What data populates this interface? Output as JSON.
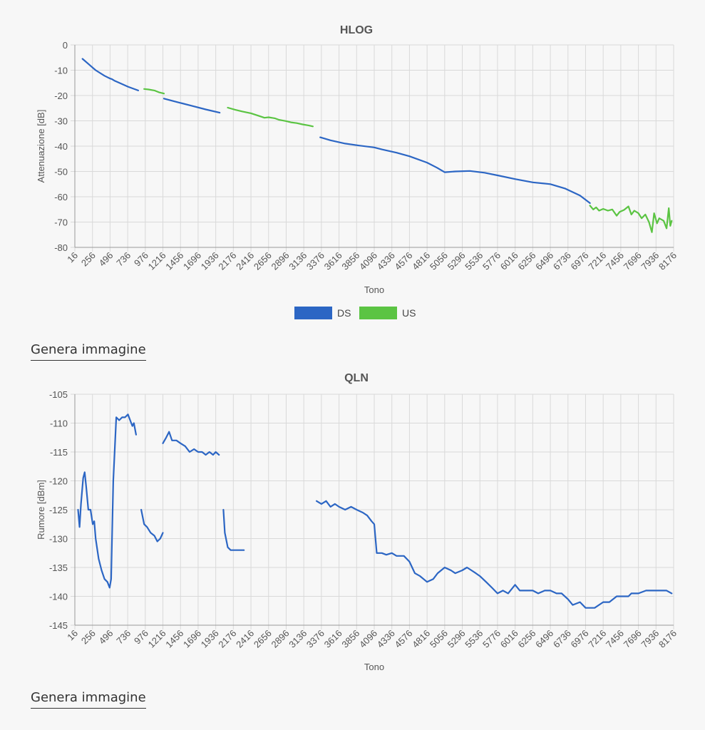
{
  "links": {
    "generate_1": "Genera immagine",
    "generate_2": "Genera immagine"
  },
  "colors": {
    "ds": "#2c66c4",
    "us": "#5bc443",
    "grid": "#d9d9d9",
    "axis": "#999999",
    "text": "#555555"
  },
  "chart_data": [
    {
      "type": "line",
      "title": "HLOG",
      "xlabel": "Tono",
      "ylabel": "Attenuazione [dB]",
      "xlim": [
        16,
        8176
      ],
      "ylim": [
        -80,
        0
      ],
      "yticks": [
        0,
        -10,
        -20,
        -30,
        -40,
        -50,
        -60,
        -70,
        -80
      ],
      "xticks": [
        16,
        256,
        496,
        736,
        976,
        1216,
        1456,
        1696,
        1936,
        2176,
        2416,
        2656,
        2896,
        3136,
        3376,
        3616,
        3856,
        4096,
        4336,
        4576,
        4816,
        5056,
        5296,
        5536,
        5776,
        6016,
        6256,
        6496,
        6736,
        6976,
        7216,
        7456,
        7696,
        7936,
        8176
      ],
      "grid": true,
      "legend": "bottom",
      "series": [
        {
          "name": "DS",
          "color": "#2c66c4",
          "segments": [
            [
              [
                120,
                -5.5
              ],
              [
                200,
                -7.5
              ],
              [
                300,
                -10
              ],
              [
                420,
                -12.2
              ],
              [
                490,
                -13.2
              ],
              [
                520,
                -13.5
              ],
              [
                560,
                -14.2
              ],
              [
                640,
                -15.2
              ],
              [
                740,
                -16.5
              ],
              [
                880,
                -18
              ]
            ],
            [
              [
                1230,
                -21.2
              ],
              [
                1400,
                -22.5
              ],
              [
                1600,
                -24
              ],
              [
                1800,
                -25.5
              ],
              [
                1990,
                -26.8
              ]
            ],
            [
              [
                3360,
                -36.5
              ],
              [
                3500,
                -37.7
              ],
              [
                3700,
                -39
              ],
              [
                3900,
                -39.8
              ],
              [
                4096,
                -40.5
              ],
              [
                4200,
                -41.3
              ],
              [
                4400,
                -42.6
              ],
              [
                4576,
                -44
              ],
              [
                4816,
                -46.5
              ],
              [
                4950,
                -48.5
              ],
              [
                5056,
                -50.3
              ],
              [
                5200,
                -50
              ],
              [
                5400,
                -49.8
              ],
              [
                5600,
                -50.5
              ],
              [
                5800,
                -51.7
              ],
              [
                6016,
                -53
              ],
              [
                6256,
                -54.3
              ],
              [
                6496,
                -55
              ],
              [
                6700,
                -56.8
              ],
              [
                6900,
                -59.5
              ],
              [
                7036,
                -62.5
              ]
            ]
          ]
        },
        {
          "name": "US",
          "color": "#5bc443",
          "segments": [
            [
              [
                960,
                -17.4
              ],
              [
                1020,
                -17.6
              ],
              [
                1100,
                -18
              ],
              [
                1160,
                -18.7
              ],
              [
                1230,
                -19.2
              ]
            ],
            [
              [
                2100,
                -24.8
              ],
              [
                2200,
                -25.6
              ],
              [
                2300,
                -26.3
              ],
              [
                2416,
                -27
              ],
              [
                2520,
                -28
              ],
              [
                2600,
                -28.8
              ],
              [
                2656,
                -28.6
              ],
              [
                2740,
                -29
              ],
              [
                2800,
                -29.6
              ],
              [
                2896,
                -30.1
              ],
              [
                2960,
                -30.6
              ],
              [
                3040,
                -30.9
              ],
              [
                3120,
                -31.4
              ],
              [
                3200,
                -31.8
              ],
              [
                3260,
                -32.2
              ]
            ],
            [
              [
                7036,
                -63.5
              ],
              [
                7080,
                -65
              ],
              [
                7120,
                -64.2
              ],
              [
                7160,
                -65.5
              ],
              [
                7216,
                -64.8
              ],
              [
                7280,
                -65.5
              ],
              [
                7340,
                -65
              ],
              [
                7400,
                -67.5
              ],
              [
                7440,
                -66
              ],
              [
                7500,
                -65.2
              ],
              [
                7560,
                -63.8
              ],
              [
                7600,
                -67
              ],
              [
                7640,
                -65.5
              ],
              [
                7696,
                -66.5
              ],
              [
                7740,
                -68.5
              ],
              [
                7790,
                -67
              ],
              [
                7840,
                -70
              ],
              [
                7880,
                -74
              ],
              [
                7910,
                -66.5
              ],
              [
                7950,
                -70.5
              ],
              [
                7980,
                -68.5
              ],
              [
                8040,
                -69.5
              ],
              [
                8080,
                -72.5
              ],
              [
                8110,
                -64.5
              ],
              [
                8130,
                -71.5
              ],
              [
                8150,
                -69.5
              ]
            ]
          ]
        }
      ]
    },
    {
      "type": "line",
      "title": "QLN",
      "xlabel": "Tono",
      "ylabel": "Rumore [dBm]",
      "xlim": [
        16,
        8176
      ],
      "ylim": [
        -145,
        -105
      ],
      "yticks": [
        -105,
        -110,
        -115,
        -120,
        -125,
        -130,
        -135,
        -140,
        -145
      ],
      "xticks": [
        16,
        256,
        496,
        736,
        976,
        1216,
        1456,
        1696,
        1936,
        2176,
        2416,
        2656,
        2896,
        3136,
        3376,
        3616,
        3856,
        4096,
        4336,
        4576,
        4816,
        5056,
        5296,
        5536,
        5776,
        6016,
        6256,
        6496,
        6736,
        6976,
        7216,
        7456,
        7696,
        7936,
        8176
      ],
      "grid": true,
      "legend": "none",
      "series": [
        {
          "name": "",
          "color": "#2c66c4",
          "segments": [
            [
              [
                60,
                -125
              ],
              [
                80,
                -128
              ],
              [
                100,
                -124
              ],
              [
                130,
                -119.5
              ],
              [
                150,
                -118.5
              ],
              [
                170,
                -121
              ],
              [
                200,
                -125
              ],
              [
                230,
                -125
              ],
              [
                260,
                -127.5
              ],
              [
                280,
                -127
              ],
              [
                300,
                -130
              ],
              [
                340,
                -133.5
              ],
              [
                380,
                -135.5
              ],
              [
                420,
                -137
              ],
              [
                460,
                -137.5
              ],
              [
                490,
                -138.5
              ],
              [
                510,
                -137
              ],
              [
                540,
                -120
              ],
              [
                580,
                -109
              ],
              [
                620,
                -109.5
              ],
              [
                660,
                -109
              ],
              [
                700,
                -109
              ],
              [
                740,
                -108.5
              ],
              [
                770,
                -109.5
              ],
              [
                800,
                -110.5
              ],
              [
                820,
                -110
              ],
              [
                850,
                -112
              ]
            ],
            [
              [
                920,
                -125
              ],
              [
                960,
                -127.5
              ],
              [
                1000,
                -128
              ],
              [
                1050,
                -129
              ],
              [
                1100,
                -129.5
              ],
              [
                1140,
                -130.5
              ],
              [
                1180,
                -130
              ],
              [
                1216,
                -129
              ]
            ],
            [
              [
                1216,
                -113.5
              ],
              [
                1260,
                -112.5
              ],
              [
                1300,
                -111.5
              ],
              [
                1340,
                -113
              ],
              [
                1400,
                -113
              ],
              [
                1456,
                -113.5
              ],
              [
                1520,
                -114
              ],
              [
                1580,
                -115
              ],
              [
                1640,
                -114.5
              ],
              [
                1696,
                -115
              ],
              [
                1750,
                -115
              ],
              [
                1800,
                -115.5
              ],
              [
                1850,
                -115
              ],
              [
                1900,
                -115.5
              ],
              [
                1936,
                -115
              ],
              [
                1980,
                -115.5
              ]
            ],
            [
              [
                2040,
                -125
              ],
              [
                2060,
                -129
              ],
              [
                2100,
                -131.5
              ],
              [
                2140,
                -132
              ],
              [
                2200,
                -132
              ],
              [
                2260,
                -132
              ],
              [
                2320,
                -132
              ]
            ],
            [
              [
                3310,
                -123.5
              ],
              [
                3376,
                -124
              ],
              [
                3440,
                -123.5
              ],
              [
                3500,
                -124.5
              ],
              [
                3560,
                -124
              ],
              [
                3616,
                -124.5
              ],
              [
                3700,
                -125
              ],
              [
                3780,
                -124.5
              ],
              [
                3856,
                -125
              ],
              [
                3940,
                -125.5
              ],
              [
                4000,
                -126
              ],
              [
                4060,
                -127
              ],
              [
                4096,
                -127.5
              ],
              [
                4130,
                -132.5
              ],
              [
                4200,
                -132.5
              ],
              [
                4260,
                -132.8
              ],
              [
                4336,
                -132.5
              ],
              [
                4400,
                -133
              ],
              [
                4500,
                -133
              ],
              [
                4576,
                -134
              ],
              [
                4650,
                -136
              ],
              [
                4720,
                -136.5
              ],
              [
                4816,
                -137.5
              ],
              [
                4900,
                -137
              ],
              [
                4960,
                -136
              ],
              [
                5056,
                -135
              ],
              [
                5140,
                -135.5
              ],
              [
                5200,
                -136
              ],
              [
                5296,
                -135.5
              ],
              [
                5360,
                -135
              ],
              [
                5420,
                -135.5
              ],
              [
                5480,
                -136
              ],
              [
                5536,
                -136.5
              ],
              [
                5620,
                -137.5
              ],
              [
                5700,
                -138.5
              ],
              [
                5776,
                -139.5
              ],
              [
                5850,
                -139
              ],
              [
                5920,
                -139.5
              ],
              [
                6016,
                -138
              ],
              [
                6080,
                -139
              ],
              [
                6160,
                -139
              ],
              [
                6256,
                -139
              ],
              [
                6330,
                -139.5
              ],
              [
                6420,
                -139
              ],
              [
                6496,
                -139
              ],
              [
                6580,
                -139.5
              ],
              [
                6650,
                -139.5
              ],
              [
                6736,
                -140.5
              ],
              [
                6800,
                -141.5
              ],
              [
                6900,
                -141
              ],
              [
                6976,
                -142
              ],
              [
                7100,
                -142
              ],
              [
                7216,
                -141
              ],
              [
                7300,
                -141
              ],
              [
                7400,
                -140
              ],
              [
                7456,
                -140
              ],
              [
                7560,
                -140
              ],
              [
                7600,
                -139.5
              ],
              [
                7696,
                -139.5
              ],
              [
                7800,
                -139
              ],
              [
                7936,
                -139
              ],
              [
                8080,
                -139
              ],
              [
                8150,
                -139.5
              ]
            ]
          ]
        }
      ]
    }
  ]
}
